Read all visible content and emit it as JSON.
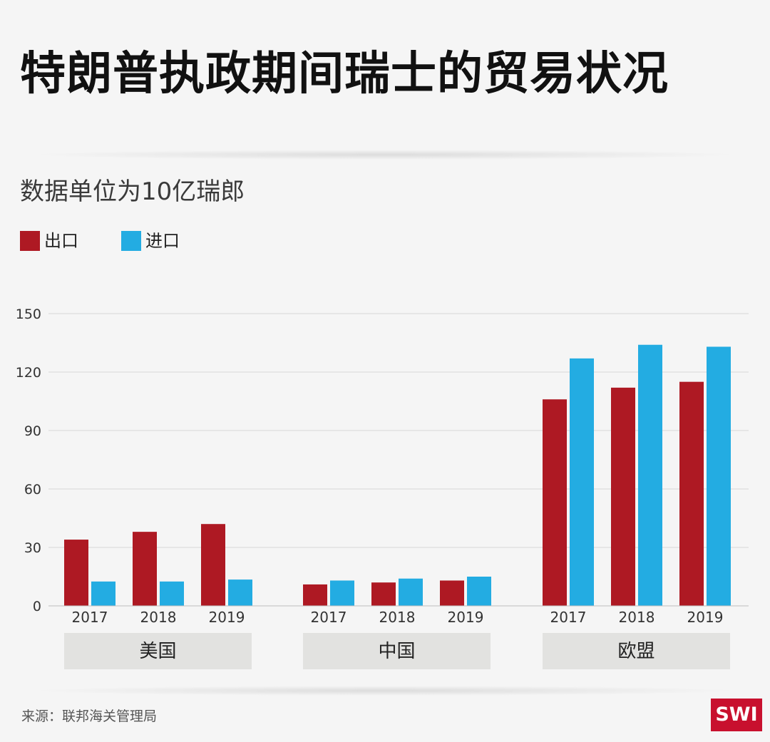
{
  "title": "特朗普执政期间瑞士的贸易状况",
  "subtitle": "数据单位为10亿瑞郎",
  "source": "来源：联邦海关管理局",
  "logo_text": "SWI",
  "colors": {
    "export": "#ae1923",
    "import": "#23ace2",
    "grid": "#d6d6d6",
    "group_box": "#e2e2e0"
  },
  "legend": [
    {
      "label": "出口",
      "color": "#ae1923"
    },
    {
      "label": "进口",
      "color": "#23ace2"
    }
  ],
  "chart_data": {
    "type": "bar",
    "title": "特朗普执政期间瑞士的贸易状况",
    "subtitle": "数据单位为10亿瑞郎",
    "ylim": [
      0,
      150
    ],
    "yticks": [
      "0",
      "30",
      "60",
      "90",
      "120",
      "150"
    ],
    "grid": true,
    "legend_position": "top-left",
    "groups": [
      {
        "name": "美国",
        "categories": [
          "2017",
          "2018",
          "2019"
        ],
        "series": [
          {
            "name": "出口",
            "values": [
              34,
              38,
              42
            ]
          },
          {
            "name": "进口",
            "values": [
              12.5,
              12.5,
              13.5
            ]
          }
        ]
      },
      {
        "name": "中国",
        "categories": [
          "2017",
          "2018",
          "2019"
        ],
        "series": [
          {
            "name": "出口",
            "values": [
              11,
              12,
              13
            ]
          },
          {
            "name": "进口",
            "values": [
              13,
              14,
              15
            ]
          }
        ]
      },
      {
        "name": "欧盟",
        "categories": [
          "2017",
          "2018",
          "2019"
        ],
        "series": [
          {
            "name": "出口",
            "values": [
              106,
              112,
              115
            ]
          },
          {
            "name": "进口",
            "values": [
              127,
              134,
              133
            ]
          }
        ]
      }
    ]
  }
}
